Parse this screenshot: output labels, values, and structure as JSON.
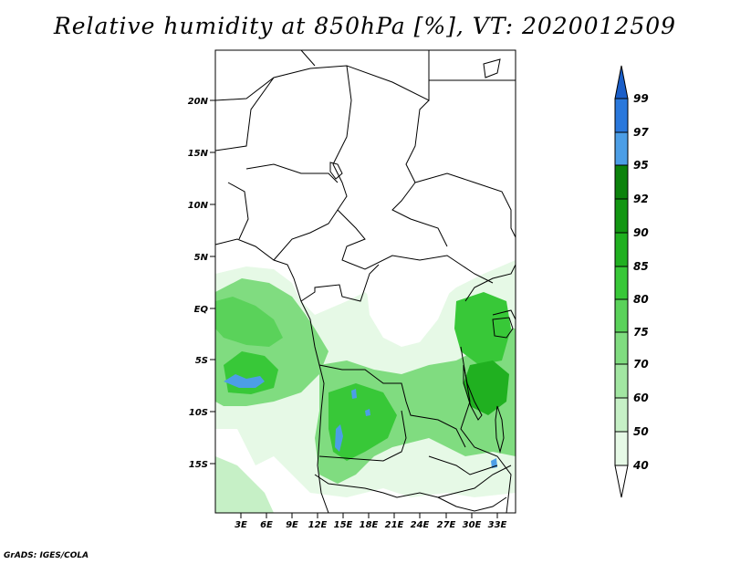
{
  "title": "Relative humidity at 850hPa [%], VT: 2020012509",
  "credit": "GrADS: IGES/COLA",
  "map": {
    "y_axis_labels": [
      "20N",
      "15N",
      "10N",
      "5N",
      "EQ",
      "5S",
      "10S",
      "15S"
    ],
    "x_axis_labels": [
      "3E",
      "6E",
      "9E",
      "12E",
      "15E",
      "18E",
      "21E",
      "24E",
      "27E",
      "30E",
      "33E"
    ]
  },
  "colorbar": {
    "levels": [
      "40",
      "50",
      "60",
      "70",
      "75",
      "80",
      "85",
      "90",
      "92",
      "95",
      "97",
      "99"
    ],
    "colors": [
      "#ffffff",
      "#e6f9e6",
      "#c6f0c6",
      "#a2e6a2",
      "#80dc80",
      "#5ad25a",
      "#38c838",
      "#20b020",
      "#129612",
      "#0c820c",
      "#4c9ee6",
      "#2a78dc",
      "#1a5ec8"
    ]
  }
}
